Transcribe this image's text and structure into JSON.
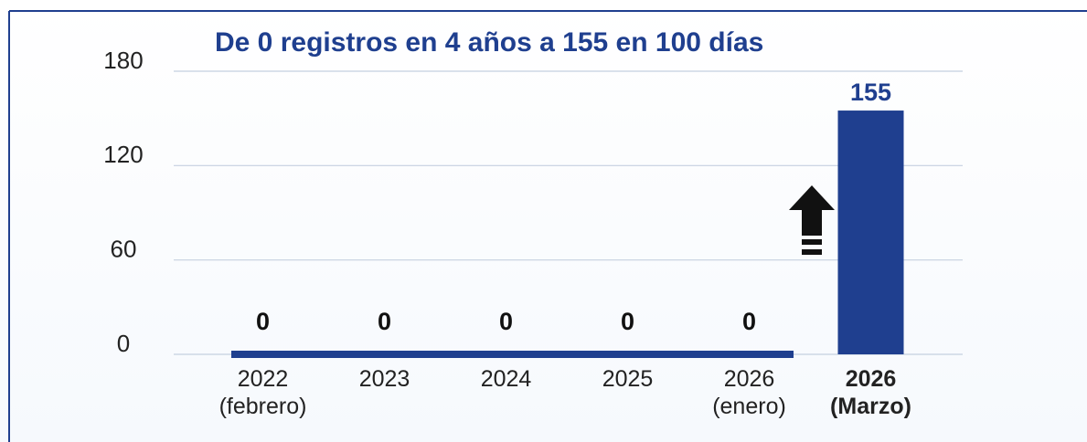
{
  "chart_data": {
    "type": "bar",
    "title": "De 0 registros en 4 años a 155 en 100 días",
    "categories": [
      "2022 (febrero)",
      "2023",
      "2024",
      "2025",
      "2026 (enero)",
      "2026 (Marzo)"
    ],
    "values": [
      0,
      0,
      0,
      0,
      0,
      155
    ],
    "color": "#1f3f8f",
    "label_color": "#111111",
    "highlight_index": 5,
    "highlight_color": "#1f3f8f",
    "ylim": [
      0,
      180
    ],
    "yticks": [
      0,
      60,
      120,
      180
    ],
    "grid": true
  }
}
